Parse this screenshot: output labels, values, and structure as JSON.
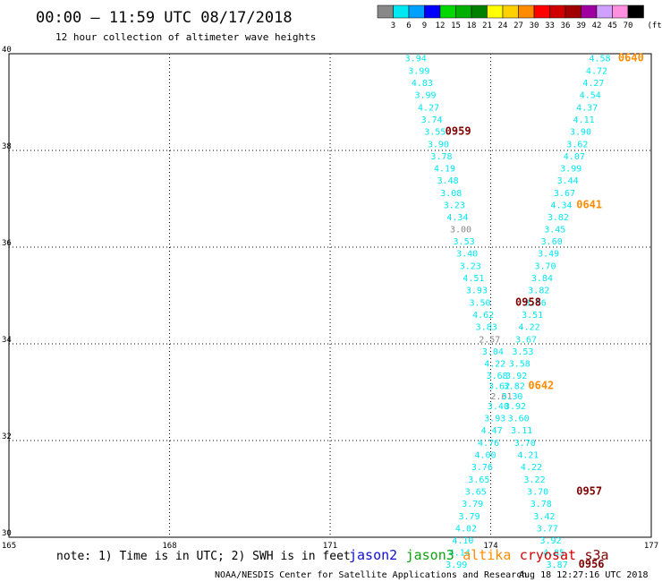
{
  "title": "00:00 – 11:59 UTC 08/17/2018",
  "subtitle": "12 hour collection of altimeter wave heights",
  "legend": {
    "unit": "(ft)",
    "bins": [
      {
        "label": "3",
        "color": "#888888"
      },
      {
        "label": "6",
        "color": "#00e8f0"
      },
      {
        "label": "9",
        "color": "#00a0ff"
      },
      {
        "label": "12",
        "color": "#0000ff"
      },
      {
        "label": "15",
        "color": "#00d800"
      },
      {
        "label": "18",
        "color": "#00b000"
      },
      {
        "label": "21",
        "color": "#008000"
      },
      {
        "label": "24",
        "color": "#ffff00"
      },
      {
        "label": "27",
        "color": "#ffd000"
      },
      {
        "label": "30",
        "color": "#ff8c00"
      },
      {
        "label": "33",
        "color": "#ff0000"
      },
      {
        "label": "36",
        "color": "#d00000"
      },
      {
        "label": "39",
        "color": "#a00000"
      },
      {
        "label": "42",
        "color": "#a000a0"
      },
      {
        "label": "45",
        "color": "#d0a0ff"
      },
      {
        "label": "70",
        "color": "#ff90e0"
      },
      {
        "label": "",
        "color": "#000000"
      }
    ]
  },
  "note": "note: 1) Time is in UTC; 2) SWH is in feet",
  "satellites": [
    {
      "name": "jason2",
      "color": "#1010d0"
    },
    {
      "name": "jason3",
      "color": "#10a010"
    },
    {
      "name": "altika",
      "color": "#ff8c00"
    },
    {
      "name": "cryosat",
      "color": "#d00000"
    },
    {
      "name": "s3a",
      "color": "#800000"
    }
  ],
  "footer_left": "NOAA/NESDIS Center for Satellite Applications and Research",
  "footer_right": "Aug 18 12:27:16 UTC 2018",
  "chart_data": {
    "type": "scatter",
    "title": "00:00 – 11:59 UTC 08/17/2018",
    "subtitle": "12 hour collection of altimeter wave heights",
    "xlim": [
      165,
      177
    ],
    "ylim": [
      30,
      40
    ],
    "x_ticks": [
      "165",
      "168",
      "171",
      "174",
      "177"
    ],
    "y_ticks": [
      "30",
      "32",
      "34",
      "36",
      "38",
      "40"
    ],
    "grid": true,
    "series": [
      {
        "name": "s3a",
        "color": "#00e8f0",
        "points": [
          {
            "lon": 172.6,
            "lat": 39.92,
            "value": "3.94",
            "color": "#00e8f0"
          },
          {
            "lon": 172.66,
            "lat": 39.66,
            "value": "3.99",
            "color": "#00e8f0"
          },
          {
            "lon": 172.72,
            "lat": 39.41,
            "value": "4.83",
            "color": "#00e8f0"
          },
          {
            "lon": 172.78,
            "lat": 39.16,
            "value": "3.99",
            "color": "#00e8f0"
          },
          {
            "lon": 172.84,
            "lat": 38.9,
            "value": "4.27",
            "color": "#00e8f0"
          },
          {
            "lon": 172.9,
            "lat": 38.65,
            "value": "3.74",
            "color": "#00e8f0"
          },
          {
            "lon": 172.96,
            "lat": 38.4,
            "value": "3.55",
            "color": "#00e8f0"
          },
          {
            "lon": 173.02,
            "lat": 38.14,
            "value": "3.90",
            "color": "#00e8f0"
          },
          {
            "lon": 173.08,
            "lat": 37.89,
            "value": "3.78",
            "color": "#00e8f0"
          },
          {
            "lon": 173.14,
            "lat": 37.64,
            "value": "4.19",
            "color": "#00e8f0"
          },
          {
            "lon": 173.2,
            "lat": 37.39,
            "value": "3.48",
            "color": "#00e8f0"
          },
          {
            "lon": 173.26,
            "lat": 37.13,
            "value": "3.08",
            "color": "#00e8f0"
          },
          {
            "lon": 173.32,
            "lat": 36.88,
            "value": "3.23",
            "color": "#00e8f0"
          },
          {
            "lon": 173.38,
            "lat": 36.63,
            "value": "4.34",
            "color": "#00e8f0"
          },
          {
            "lon": 173.44,
            "lat": 36.38,
            "value": "3.00",
            "color": "#888888"
          },
          {
            "lon": 173.5,
            "lat": 36.13,
            "value": "3.53",
            "color": "#00e8f0"
          },
          {
            "lon": 173.56,
            "lat": 35.88,
            "value": "3.40",
            "color": "#00e8f0"
          },
          {
            "lon": 173.62,
            "lat": 35.62,
            "value": "3.23",
            "color": "#00e8f0"
          },
          {
            "lon": 173.68,
            "lat": 35.37,
            "value": "4.51",
            "color": "#00e8f0"
          },
          {
            "lon": 173.74,
            "lat": 35.12,
            "value": "3.93",
            "color": "#00e8f0"
          },
          {
            "lon": 173.8,
            "lat": 34.86,
            "value": "3.50",
            "color": "#00e8f0"
          },
          {
            "lon": 173.86,
            "lat": 34.61,
            "value": "4.62",
            "color": "#00e8f0"
          },
          {
            "lon": 173.92,
            "lat": 34.36,
            "value": "3.83",
            "color": "#00e8f0"
          },
          {
            "lon": 173.98,
            "lat": 34.1,
            "value": "2.57",
            "color": "#888888"
          },
          {
            "lon": 174.04,
            "lat": 33.85,
            "value": "3.04",
            "color": "#00e8f0"
          },
          {
            "lon": 174.08,
            "lat": 33.6,
            "value": "4.22",
            "color": "#00e8f0"
          },
          {
            "lon": 174.12,
            "lat": 33.35,
            "value": "3.68",
            "color": "#00e8f0"
          },
          {
            "lon": 174.16,
            "lat": 33.14,
            "value": "3.62",
            "color": "#00e8f0"
          },
          {
            "lon": 174.2,
            "lat": 32.93,
            "value": "2.61",
            "color": "#888888"
          },
          {
            "lon": 174.14,
            "lat": 32.72,
            "value": "3.40",
            "color": "#00e8f0"
          },
          {
            "lon": 174.08,
            "lat": 32.47,
            "value": "3.93",
            "color": "#00e8f0"
          },
          {
            "lon": 174.02,
            "lat": 32.22,
            "value": "4.47",
            "color": "#00e8f0"
          },
          {
            "lon": 173.96,
            "lat": 31.96,
            "value": "4.76",
            "color": "#00e8f0"
          },
          {
            "lon": 173.9,
            "lat": 31.71,
            "value": "4.00",
            "color": "#00e8f0"
          },
          {
            "lon": 173.84,
            "lat": 31.46,
            "value": "3.76",
            "color": "#00e8f0"
          },
          {
            "lon": 173.78,
            "lat": 31.2,
            "value": "3.65",
            "color": "#00e8f0"
          },
          {
            "lon": 173.72,
            "lat": 30.95,
            "value": "3.65",
            "color": "#00e8f0"
          },
          {
            "lon": 173.66,
            "lat": 30.7,
            "value": "3.79",
            "color": "#00e8f0"
          },
          {
            "lon": 173.6,
            "lat": 30.44,
            "value": "3.79",
            "color": "#00e8f0"
          },
          {
            "lon": 173.54,
            "lat": 30.19,
            "value": "4.02",
            "color": "#00e8f0"
          },
          {
            "lon": 173.48,
            "lat": 29.94,
            "value": "4.10",
            "color": "#00e8f0"
          },
          {
            "lon": 173.42,
            "lat": 29.69,
            "value": "4.14",
            "color": "#00e8f0"
          },
          {
            "lon": 173.36,
            "lat": 29.44,
            "value": "3.99",
            "color": "#00e8f0"
          }
        ]
      },
      {
        "name": "altika",
        "color": "#00e8f0",
        "points": [
          {
            "lon": 176.04,
            "lat": 39.92,
            "value": "4.58",
            "color": "#00e8f0"
          },
          {
            "lon": 175.98,
            "lat": 39.66,
            "value": "4.72",
            "color": "#00e8f0"
          },
          {
            "lon": 175.92,
            "lat": 39.41,
            "value": "4.27",
            "color": "#00e8f0"
          },
          {
            "lon": 175.86,
            "lat": 39.16,
            "value": "4.54",
            "color": "#00e8f0"
          },
          {
            "lon": 175.8,
            "lat": 38.9,
            "value": "4.37",
            "color": "#00e8f0"
          },
          {
            "lon": 175.74,
            "lat": 38.65,
            "value": "4.11",
            "color": "#00e8f0"
          },
          {
            "lon": 175.68,
            "lat": 38.4,
            "value": "3.90",
            "color": "#00e8f0"
          },
          {
            "lon": 175.62,
            "lat": 38.14,
            "value": "3.62",
            "color": "#00e8f0"
          },
          {
            "lon": 175.56,
            "lat": 37.89,
            "value": "4.07",
            "color": "#00e8f0"
          },
          {
            "lon": 175.5,
            "lat": 37.64,
            "value": "3.99",
            "color": "#00e8f0"
          },
          {
            "lon": 175.44,
            "lat": 37.39,
            "value": "3.44",
            "color": "#00e8f0"
          },
          {
            "lon": 175.38,
            "lat": 37.13,
            "value": "3.67",
            "color": "#00e8f0"
          },
          {
            "lon": 175.32,
            "lat": 36.88,
            "value": "4.34",
            "color": "#00e8f0"
          },
          {
            "lon": 175.26,
            "lat": 36.63,
            "value": "3.82",
            "color": "#00e8f0"
          },
          {
            "lon": 175.2,
            "lat": 36.38,
            "value": "3.45",
            "color": "#00e8f0"
          },
          {
            "lon": 175.14,
            "lat": 36.13,
            "value": "3.60",
            "color": "#00e8f0"
          },
          {
            "lon": 175.08,
            "lat": 35.88,
            "value": "3.49",
            "color": "#00e8f0"
          },
          {
            "lon": 175.02,
            "lat": 35.62,
            "value": "3.70",
            "color": "#00e8f0"
          },
          {
            "lon": 174.96,
            "lat": 35.37,
            "value": "3.84",
            "color": "#00e8f0"
          },
          {
            "lon": 174.9,
            "lat": 35.12,
            "value": "3.82",
            "color": "#00e8f0"
          },
          {
            "lon": 174.84,
            "lat": 34.86,
            "value": "3.86",
            "color": "#00e8f0"
          },
          {
            "lon": 174.78,
            "lat": 34.61,
            "value": "3.51",
            "color": "#00e8f0"
          },
          {
            "lon": 174.72,
            "lat": 34.36,
            "value": "4.22",
            "color": "#00e8f0"
          },
          {
            "lon": 174.66,
            "lat": 34.1,
            "value": "3.67",
            "color": "#00e8f0"
          },
          {
            "lon": 174.6,
            "lat": 33.85,
            "value": "3.53",
            "color": "#00e8f0"
          },
          {
            "lon": 174.54,
            "lat": 33.6,
            "value": "3.58",
            "color": "#00e8f0"
          },
          {
            "lon": 174.48,
            "lat": 33.35,
            "value": "3.92",
            "color": "#00e8f0"
          },
          {
            "lon": 174.44,
            "lat": 33.14,
            "value": "3.82",
            "color": "#00e8f0"
          },
          {
            "lon": 174.4,
            "lat": 32.93,
            "value": "3.30",
            "color": "#00e8f0"
          },
          {
            "lon": 174.46,
            "lat": 32.72,
            "value": "3.92",
            "color": "#00e8f0"
          },
          {
            "lon": 174.52,
            "lat": 32.47,
            "value": "3.60",
            "color": "#00e8f0"
          },
          {
            "lon": 174.58,
            "lat": 32.22,
            "value": "3.11",
            "color": "#00e8f0"
          },
          {
            "lon": 174.64,
            "lat": 31.96,
            "value": "3.70",
            "color": "#00e8f0"
          },
          {
            "lon": 174.7,
            "lat": 31.71,
            "value": "4.21",
            "color": "#00e8f0"
          },
          {
            "lon": 174.76,
            "lat": 31.46,
            "value": "4.22",
            "color": "#00e8f0"
          },
          {
            "lon": 174.82,
            "lat": 31.2,
            "value": "3.22",
            "color": "#00e8f0"
          },
          {
            "lon": 174.88,
            "lat": 30.95,
            "value": "3.70",
            "color": "#00e8f0"
          },
          {
            "lon": 174.94,
            "lat": 30.7,
            "value": "3.78",
            "color": "#00e8f0"
          },
          {
            "lon": 175.0,
            "lat": 30.44,
            "value": "3.42",
            "color": "#00e8f0"
          },
          {
            "lon": 175.06,
            "lat": 30.19,
            "value": "3.77",
            "color": "#00e8f0"
          },
          {
            "lon": 175.12,
            "lat": 29.94,
            "value": "3.92",
            "color": "#00e8f0"
          },
          {
            "lon": 175.18,
            "lat": 29.69,
            "value": "4.85",
            "color": "#00e8f0"
          },
          {
            "lon": 175.24,
            "lat": 29.44,
            "value": "3.87",
            "color": "#00e8f0"
          }
        ]
      }
    ],
    "pass_times": [
      {
        "time": "0640",
        "satellite": "altika",
        "lon": 176.38,
        "lat": 39.92
      },
      {
        "time": "0959",
        "satellite": "s3a",
        "lon": 173.15,
        "lat": 38.4
      },
      {
        "time": "0641",
        "satellite": "altika",
        "lon": 175.6,
        "lat": 36.88
      },
      {
        "time": "0958",
        "satellite": "s3a",
        "lon": 174.46,
        "lat": 34.86
      },
      {
        "time": "0642",
        "satellite": "altika",
        "lon": 174.7,
        "lat": 33.14
      },
      {
        "time": "0957",
        "satellite": "s3a",
        "lon": 175.6,
        "lat": 30.95
      },
      {
        "time": "0956",
        "satellite": "s3a",
        "lon": 175.64,
        "lat": 29.44
      }
    ]
  }
}
